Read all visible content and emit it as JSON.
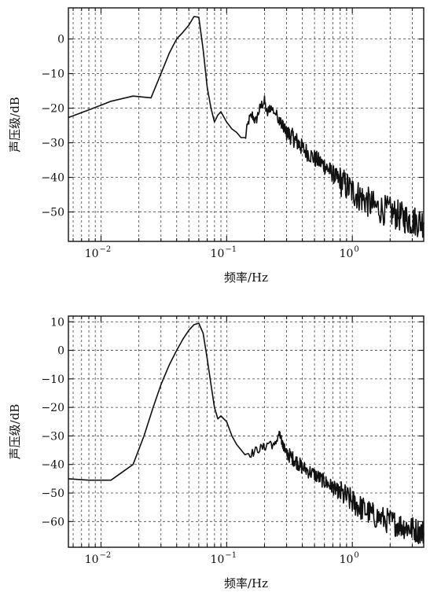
{
  "chart_data": [
    {
      "type": "line",
      "xlabel": "频率/Hz",
      "ylabel": "声压级/dB",
      "xscale": "log",
      "xlim": [
        0.0055,
        3.7
      ],
      "ylim": [
        -58.5,
        9
      ],
      "grid": true,
      "xticks": [
        {
          "v": 0.01,
          "label": "10",
          "exp": "−2"
        },
        {
          "v": 0.1,
          "label": "10",
          "exp": "−1"
        },
        {
          "v": 1,
          "label": "10",
          "exp": "0"
        }
      ],
      "yticks": [
        {
          "v": 0,
          "label": "0"
        },
        {
          "v": -10,
          "label": "−10"
        },
        {
          "v": -20,
          "label": "−20"
        },
        {
          "v": -30,
          "label": "−30"
        },
        {
          "v": -40,
          "label": "−40"
        },
        {
          "v": -50,
          "label": "−50"
        }
      ],
      "series": [
        {
          "points": [
            [
              0.0055,
              -22.7
            ],
            [
              0.008,
              -20.5
            ],
            [
              0.012,
              -18.0
            ],
            [
              0.018,
              -16.5
            ],
            [
              0.025,
              -17.0
            ],
            [
              0.03,
              -10.0
            ],
            [
              0.035,
              -4.0
            ],
            [
              0.04,
              0.0
            ],
            [
              0.045,
              2.0
            ],
            [
              0.05,
              4.0
            ],
            [
              0.055,
              6.5
            ],
            [
              0.06,
              6.3
            ],
            [
              0.065,
              -3.0
            ],
            [
              0.07,
              -14.0
            ],
            [
              0.075,
              -20.0
            ],
            [
              0.08,
              -24.0
            ],
            [
              0.085,
              -22.0
            ],
            [
              0.09,
              -21.0
            ],
            [
              0.1,
              -24.0
            ],
            [
              0.11,
              -26.0
            ],
            [
              0.12,
              -27.0
            ],
            [
              0.13,
              -28.5
            ],
            [
              0.14,
              -29.0
            ],
            [
              0.15,
              -23.5
            ],
            [
              0.16,
              -22.0
            ],
            [
              0.17,
              -24.0
            ],
            [
              0.18,
              -21.0
            ],
            [
              0.19,
              -19.0
            ],
            [
              0.2,
              -18.0
            ],
            [
              0.21,
              -22.0
            ],
            [
              0.22,
              -19.5
            ],
            [
              0.24,
              -21.0
            ],
            [
              0.26,
              -23.0
            ],
            [
              0.28,
              -25.0
            ],
            [
              0.3,
              -27.0
            ],
            [
              0.35,
              -29.0
            ],
            [
              0.4,
              -31.5
            ],
            [
              0.5,
              -34.5
            ],
            [
              0.6,
              -36.5
            ],
            [
              0.7,
              -39.0
            ],
            [
              0.8,
              -41.0
            ],
            [
              1.0,
              -44.0
            ],
            [
              1.2,
              -46.0
            ],
            [
              1.5,
              -48.5
            ],
            [
              2.0,
              -50.0
            ],
            [
              2.5,
              -51.5
            ],
            [
              3.0,
              -52.5
            ],
            [
              3.7,
              -53.0
            ]
          ]
        }
      ]
    },
    {
      "type": "line",
      "xlabel": "频率/Hz",
      "ylabel": "声压级/dB",
      "xscale": "log",
      "xlim": [
        0.0055,
        3.7
      ],
      "ylim": [
        -69,
        12
      ],
      "grid": true,
      "xticks": [
        {
          "v": 0.01,
          "label": "10",
          "exp": "−2"
        },
        {
          "v": 0.1,
          "label": "10",
          "exp": "−1"
        },
        {
          "v": 1,
          "label": "10",
          "exp": "0"
        }
      ],
      "yticks": [
        {
          "v": 10,
          "label": "10"
        },
        {
          "v": 0,
          "label": "0"
        },
        {
          "v": -10,
          "label": "−10"
        },
        {
          "v": -20,
          "label": "−20"
        },
        {
          "v": -30,
          "label": "−30"
        },
        {
          "v": -40,
          "label": "−40"
        },
        {
          "v": -50,
          "label": "−50"
        },
        {
          "v": -60,
          "label": "−60"
        }
      ],
      "series": [
        {
          "points": [
            [
              0.0055,
              -45.0
            ],
            [
              0.008,
              -45.5
            ],
            [
              0.012,
              -45.5
            ],
            [
              0.018,
              -40.0
            ],
            [
              0.022,
              -30.0
            ],
            [
              0.026,
              -20.0
            ],
            [
              0.03,
              -12.0
            ],
            [
              0.035,
              -5.0
            ],
            [
              0.04,
              0.0
            ],
            [
              0.045,
              4.0
            ],
            [
              0.05,
              7.0
            ],
            [
              0.055,
              9.0
            ],
            [
              0.06,
              9.5
            ],
            [
              0.065,
              6.0
            ],
            [
              0.07,
              -3.0
            ],
            [
              0.075,
              -12.0
            ],
            [
              0.08,
              -20.0
            ],
            [
              0.085,
              -24.0
            ],
            [
              0.09,
              -23.0
            ],
            [
              0.1,
              -25.0
            ],
            [
              0.11,
              -30.0
            ],
            [
              0.12,
              -33.0
            ],
            [
              0.14,
              -36.0
            ],
            [
              0.16,
              -36.0
            ],
            [
              0.18,
              -34.5
            ],
            [
              0.2,
              -34.0
            ],
            [
              0.22,
              -32.0
            ],
            [
              0.24,
              -34.0
            ],
            [
              0.26,
              -29.0
            ],
            [
              0.28,
              -33.0
            ],
            [
              0.3,
              -36.0
            ],
            [
              0.35,
              -38.5
            ],
            [
              0.4,
              -41.0
            ],
            [
              0.5,
              -43.5
            ],
            [
              0.6,
              -46.0
            ],
            [
              0.7,
              -48.0
            ],
            [
              0.8,
              -50.0
            ],
            [
              1.0,
              -53.0
            ],
            [
              1.2,
              -55.5
            ],
            [
              1.5,
              -58.0
            ],
            [
              2.0,
              -60.0
            ],
            [
              2.5,
              -61.5
            ],
            [
              3.0,
              -62.5
            ],
            [
              3.7,
              -64.0
            ]
          ]
        }
      ]
    }
  ]
}
